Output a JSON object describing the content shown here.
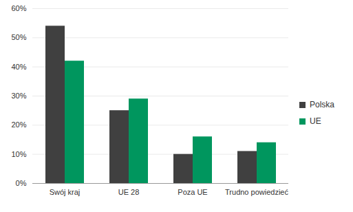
{
  "chart_data": {
    "type": "bar",
    "categories": [
      "Swój kraj",
      "UE 28",
      "Poza UE",
      "Trudno powiedzieć"
    ],
    "series": [
      {
        "name": "Polska",
        "color": "#404040",
        "values": [
          54,
          25,
          10,
          11
        ]
      },
      {
        "name": "UE",
        "color": "#00965e",
        "values": [
          42,
          29,
          16,
          14
        ]
      }
    ],
    "ylim": [
      0,
      60
    ],
    "yticks": [
      {
        "value": 0,
        "label": "0%"
      },
      {
        "value": 10,
        "label": "10%"
      },
      {
        "value": 20,
        "label": "20%"
      },
      {
        "value": 30,
        "label": "30%"
      },
      {
        "value": 40,
        "label": "40%"
      },
      {
        "value": 50,
        "label": "50%"
      },
      {
        "value": 60,
        "label": "60%"
      }
    ],
    "grid": true,
    "legend": "right"
  }
}
